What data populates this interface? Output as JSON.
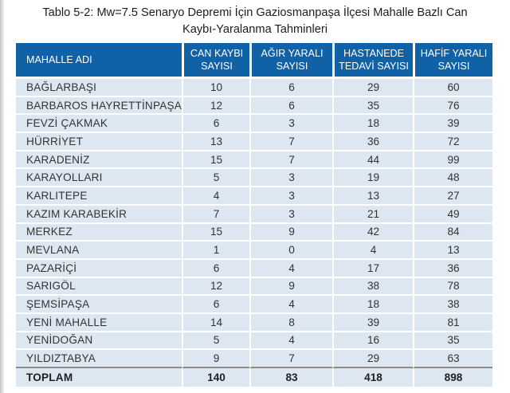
{
  "page": {
    "title_line1": "Tablo 5-2: Mw=7.5 Senaryo Depremi İçin Gaziosmanpaşa İlçesi Mahalle Bazlı Can",
    "title_line2": "Kaybı-Yaralanma Tahminleri"
  },
  "table": {
    "columns": [
      "MAHALLE ADI",
      "CAN KAYBI SAYISI",
      "AĞIR YARALI SAYISI",
      "HASTANEDE TEDAVİ SAYISI",
      "HAFİF YARALI SAYISI"
    ],
    "rows": [
      {
        "name": "BAĞLARBAŞI",
        "values": [
          10,
          6,
          29,
          60
        ]
      },
      {
        "name": "BARBAROS HAYRETTİNPAŞA",
        "values": [
          12,
          6,
          35,
          76
        ]
      },
      {
        "name": "FEVZİ ÇAKMAK",
        "values": [
          6,
          3,
          18,
          39
        ]
      },
      {
        "name": "HÜRRİYET",
        "values": [
          13,
          7,
          36,
          72
        ]
      },
      {
        "name": "KARADENİZ",
        "values": [
          15,
          7,
          44,
          99
        ]
      },
      {
        "name": "KARAYOLLARI",
        "values": [
          5,
          3,
          19,
          48
        ]
      },
      {
        "name": "KARLITEPE",
        "values": [
          4,
          3,
          13,
          27
        ]
      },
      {
        "name": "KAZIM KARABEKİR",
        "values": [
          7,
          3,
          21,
          49
        ]
      },
      {
        "name": "MERKEZ",
        "values": [
          15,
          9,
          42,
          84
        ]
      },
      {
        "name": "MEVLANA",
        "values": [
          1,
          0,
          4,
          13
        ]
      },
      {
        "name": "PAZARİÇİ",
        "values": [
          6,
          4,
          17,
          36
        ]
      },
      {
        "name": "SARIGÖL",
        "values": [
          12,
          9,
          38,
          78
        ]
      },
      {
        "name": "ŞEMSİPAŞA",
        "values": [
          6,
          4,
          18,
          38
        ]
      },
      {
        "name": "YENİ MAHALLE",
        "values": [
          14,
          8,
          39,
          81
        ]
      },
      {
        "name": "YENİDOĞAN",
        "values": [
          5,
          4,
          16,
          35
        ]
      },
      {
        "name": "YILDIZTABYA",
        "values": [
          9,
          7,
          29,
          63
        ]
      }
    ],
    "total": {
      "name": "TOPLAM",
      "values": [
        140,
        83,
        418,
        898
      ]
    }
  },
  "colors": {
    "header_bg": "#1161a7",
    "header_text": "#ffffff",
    "row_bg": "#dde7f1",
    "row_text": "#333333",
    "total_divider": "#8d8d8d",
    "title_text": "#1c1c1c"
  }
}
